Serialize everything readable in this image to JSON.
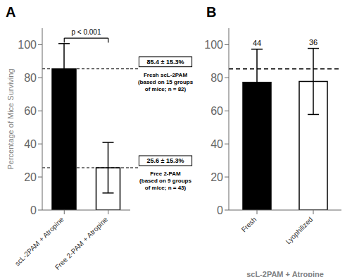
{
  "chart_data": [
    {
      "type": "bar",
      "title": "A",
      "categories": [
        "scL-2PAM + Atropine",
        "Free 2-PAM + Atropine"
      ],
      "values": [
        85.4,
        25.6
      ],
      "errors": [
        15.3,
        15.3
      ],
      "colors": [
        "#000000",
        "#ffffff"
      ],
      "ylabel": "Percentage of Mice Surviving",
      "ylim": [
        0,
        110
      ],
      "yticks": [
        0,
        20,
        40,
        60,
        80,
        100
      ],
      "significance": "p < 0.001",
      "annotations": [
        {
          "text": "85.4 ± 15.3%",
          "subtext": "Fresh scL-2PAM\n(based on 15 groups\nof mice; n = 82)"
        },
        {
          "text": "25.6 ± 15.3%",
          "subtext": "Free 2-PAM\n(based on 9 groups\nof mice; n = 43)"
        }
      ]
    },
    {
      "type": "bar",
      "title": "B",
      "categories": [
        "Fresh",
        "Lyophilized"
      ],
      "values": [
        77.3,
        77.8
      ],
      "errors": [
        20.0,
        20.0
      ],
      "colors": [
        "#000000",
        "#ffffff"
      ],
      "xlabel": "scL-2PAM + Atropine",
      "ylim": [
        0,
        110
      ],
      "yticks": [
        0,
        20,
        40,
        60,
        80,
        100
      ],
      "reference_line": 85.4,
      "annotations": [
        "44",
        "36"
      ]
    }
  ]
}
